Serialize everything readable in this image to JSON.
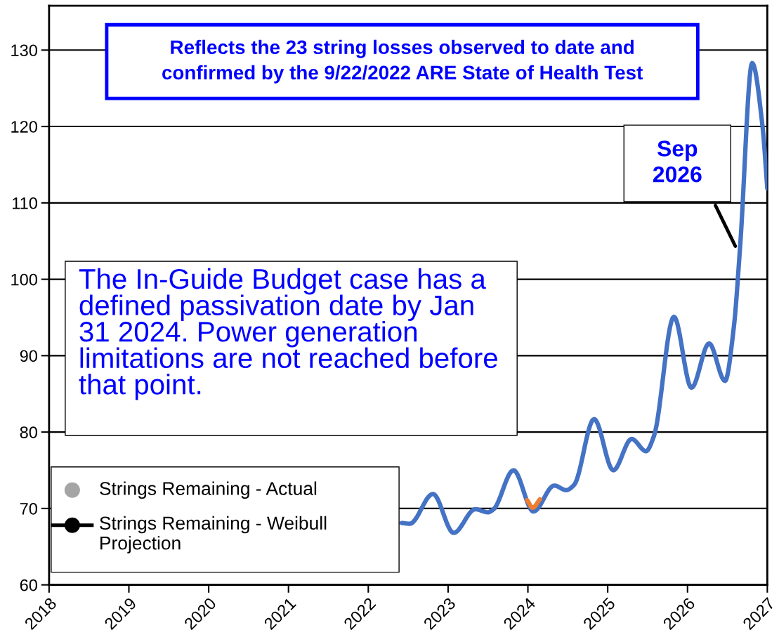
{
  "chart_data": {
    "type": "line",
    "xlim": [
      2018,
      2027
    ],
    "xticks": [
      2018,
      2019,
      2020,
      2021,
      2022,
      2023,
      2024,
      2025,
      2026,
      2027
    ],
    "ylim": [
      60,
      135.8
    ],
    "yticks": [
      60,
      70,
      80,
      90,
      100,
      110,
      120,
      130
    ],
    "grid": "y",
    "legend": false,
    "marker": "none",
    "line_style": "solid",
    "series": [
      {
        "color": "#4472c4",
        "x": [
          2022.42,
          2022.52,
          2022.81,
          2023.07,
          2023.34,
          2023.5,
          2023.57,
          2023.82,
          2024.07,
          2024.33,
          2024.48,
          2024.58,
          2024.83,
          2025.07,
          2025.3,
          2025.48,
          2025.58,
          2025.83,
          2026.05,
          2026.27,
          2026.47,
          2026.58,
          2026.66,
          2026.81,
          2026.94,
          2027.0
        ],
        "values": [
          68.1,
          68.0,
          71.9,
          66.8,
          69.9,
          69.5,
          69.9,
          75.0,
          69.6,
          73.0,
          72.4,
          73.1,
          81.7,
          75.0,
          79.1,
          77.5,
          79.5,
          95.1,
          85.8,
          91.6,
          86.7,
          93.7,
          104.4,
          128.3,
          120.0,
          111.9
        ]
      },
      {
        "color": "#ed7d31",
        "x": [
          2023.99,
          2024.06,
          2024.15
        ],
        "values": [
          71.1,
          70.1,
          71.2
        ]
      }
    ],
    "annotations": [
      "Reflects the 23 string losses observed to date and confirmed by the 9/22/2022 ARE State of Health Test",
      "The In-Guide Budget case has a defined passivation date by Jan 31 2024. Power generation limitations are not reached before that point.",
      {
        "text": "Sep\n2026",
        "x": 2026.61,
        "y": 104.1
      },
      "Strings Remaining - Actual",
      "Strings Remaining - Weibull Projection"
    ]
  }
}
